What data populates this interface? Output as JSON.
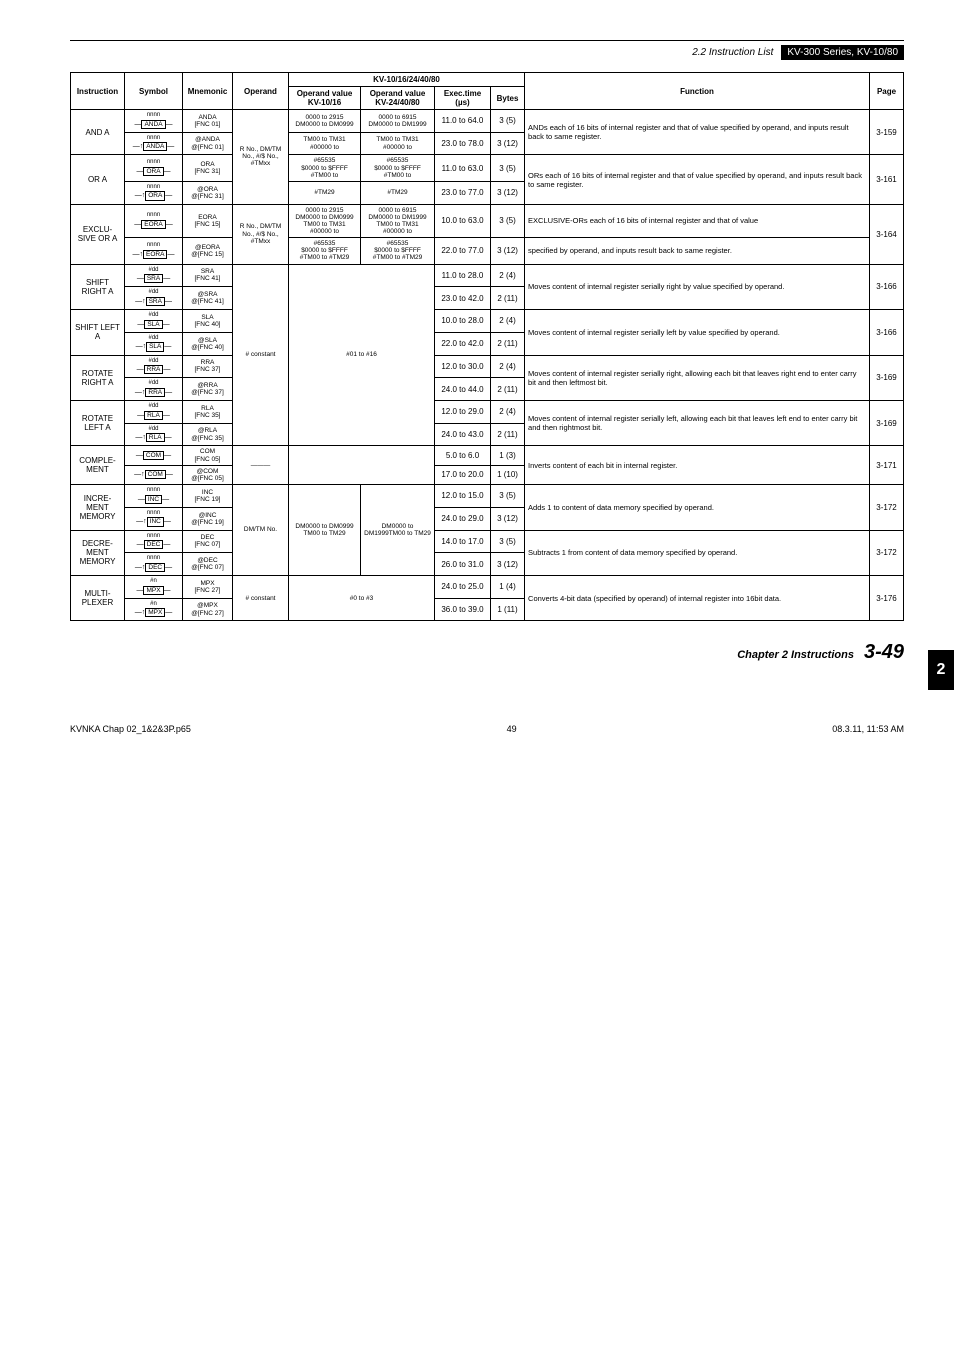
{
  "header": {
    "section_label": "2.2 Instruction List",
    "badge": "KV-300 Series, KV-10/80"
  },
  "side_tab": "2",
  "footer": {
    "chapter": "Chapter 2  Instructions",
    "page": "3-49"
  },
  "meta": {
    "filename": "KVNKA Chap 02_1&2&3P.p65",
    "pageno": "49",
    "timestamp": "08.3.11, 11:53 AM"
  },
  "table": {
    "head": {
      "instruction": "Instruction",
      "symbol": "Symbol",
      "mnemonic": "Mnemonic",
      "operand": "Operand",
      "kv_span": "KV-10/16/24/40/80",
      "ov1_a": "Operand value",
      "ov1_b": "KV-10/16",
      "ov2_a": "Operand value",
      "ov2_b": "KV-24/40/80",
      "exec_a": "Exec.time",
      "exec_b": "(µs)",
      "bytes": "Bytes",
      "function": "Function",
      "page": "Page"
    },
    "groups": [
      {
        "instruction": "AND A",
        "page": "3-159",
        "function": "ANDs each of 16 bits of internal register and that of value specified by operand, and inputs result back to same register.",
        "operand": "R No., DM/TM No., #/$ No., #TMxx",
        "operand_rowspan": 4,
        "rows": [
          {
            "sym_label": "nnnn",
            "sym_box": "ANDA",
            "sym_prefix": "—",
            "mnem": "ANDA\n[FNC 01]",
            "ov1": "0000 to 2915\nDM0000 to DM0999",
            "ov2": "0000 to 6915\nDM0000 to DM1999",
            "exec": "11.0 to 64.0",
            "bytes": "3 (5)"
          },
          {
            "sym_label": "nnnn",
            "sym_box": "ANDA",
            "sym_prefix": "—↑",
            "mnem": "@ANDA\n@[FNC 01]",
            "ov1": "TM00 to TM31\n#00000 to",
            "ov2": "TM00 to TM31\n#00000 to",
            "exec": "23.0 to 78.0",
            "bytes": "3 (12)"
          }
        ]
      },
      {
        "instruction": "OR A",
        "page": "3-161",
        "function": "ORs each of 16 bits of internal register and that of value specified by operand, and inputs result back to same register.",
        "rows": [
          {
            "sym_label": "nnnn",
            "sym_box": "ORA",
            "sym_prefix": "—",
            "mnem": "ORA\n[FNC 31]",
            "ov1": "#65535\n$0000 to $FFFF\n#TM00 to",
            "ov2": "#65535\n$0000 to $FFFF\n#TM00 to",
            "exec": "11.0 to 63.0",
            "bytes": "3 (5)"
          },
          {
            "sym_label": "nnnn",
            "sym_box": "ORA",
            "sym_prefix": "—↑",
            "mnem": "@ORA\n@[FNC 31]",
            "ov1": "#TM29",
            "ov2": "#TM29",
            "exec": "23.0 to 77.0",
            "bytes": "3 (12)"
          }
        ]
      },
      {
        "instruction": "EXCLU-SIVE OR A",
        "page": "3-164",
        "function_a": "EXCLUSIVE-ORs each of 16 bits of internal register and that of value",
        "function_b": "specified by operand, and inputs result back to same register.",
        "operand": "R No., DM/TM No., #/$ No., #TMxx",
        "rows": [
          {
            "sym_label": "nnnn",
            "sym_box": "EORA",
            "sym_prefix": "—",
            "mnem": "EORA\n[FNC 15]",
            "ov1": "0000 to 2915\nDM0000 to DM0999\nTM00 to TM31\n#00000 to",
            "ov2": "0000 to 6915\nDM0000 to DM1999\nTM00 to TM31\n#00000 to",
            "exec": "10.0 to 63.0",
            "bytes": "3 (5)"
          },
          {
            "sym_label": "nnnn",
            "sym_box": "EORA",
            "sym_prefix": "—↑",
            "mnem": "@EORA\n@[FNC 15]",
            "ov1": "#65535\n$0000 to $FFFF\n#TM00 to #TM29",
            "ov2": "#65535\n$0000 to $FFFF\n#TM00 to #TM29",
            "exec": "22.0 to 77.0",
            "bytes": "3 (12)"
          }
        ]
      },
      {
        "instruction": "SHIFT RIGHT A",
        "page": "3-166",
        "function": "Moves content of internal register serially right by value specified by operand.",
        "operand_span": "# constant",
        "ov_span": "#01 to #16",
        "rows": [
          {
            "sym_label": "#dd",
            "sym_box": "SRA",
            "sym_prefix": "—",
            "mnem": "SRA\n[FNC 41]",
            "exec": "11.0 to 28.0",
            "bytes": "2 (4)"
          },
          {
            "sym_label": "#dd",
            "sym_box": "SRA",
            "sym_prefix": "—↑",
            "mnem": "@SRA\n@[FNC 41]",
            "exec": "23.0 to 42.0",
            "bytes": "2 (11)"
          }
        ]
      },
      {
        "instruction": "SHIFT LEFT A",
        "page": "3-166",
        "function": "Moves content of internal register serially left by value specified by operand.",
        "rows": [
          {
            "sym_label": "#dd",
            "sym_box": "SLA",
            "sym_prefix": "—",
            "mnem": "SLA\n[FNC 40]",
            "exec": "10.0 to 28.0",
            "bytes": "2 (4)"
          },
          {
            "sym_label": "#dd",
            "sym_box": "SLA",
            "sym_prefix": "—↑",
            "mnem": "@SLA\n@[FNC 40]",
            "exec": "22.0 to 42.0",
            "bytes": "2 (11)"
          }
        ]
      },
      {
        "instruction": "ROTATE RIGHT A",
        "page": "3-169",
        "function": "Moves content of internal register serially right, allowing each bit that leaves right end to enter carry bit and then leftmost bit.",
        "rows": [
          {
            "sym_label": "#dd",
            "sym_box": "RRA",
            "sym_prefix": "—",
            "mnem": "RRA\n[FNC 37]",
            "exec": "12.0 to 30.0",
            "bytes": "2 (4)"
          },
          {
            "sym_label": "#dd",
            "sym_box": "RRA",
            "sym_prefix": "—↑",
            "mnem": "@RRA\n@[FNC 37]",
            "exec": "24.0 to 44.0",
            "bytes": "2 (11)"
          }
        ]
      },
      {
        "instruction": "ROTATE LEFT A",
        "page": "3-169",
        "function": "Moves content of internal register serially left, allowing each bit that leaves left end to enter carry bit and then rightmost bit.",
        "rows": [
          {
            "sym_label": "#dd",
            "sym_box": "RLA",
            "sym_prefix": "—",
            "mnem": "RLA\n[FNC 35]",
            "exec": "12.0 to 29.0",
            "bytes": "2 (4)"
          },
          {
            "sym_label": "#dd",
            "sym_box": "RLA",
            "sym_prefix": "—↑",
            "mnem": "@RLA\n@[FNC 35]",
            "exec": "24.0 to 43.0",
            "bytes": "2 (11)"
          }
        ]
      },
      {
        "instruction": "COMPLE-MENT",
        "page": "3-171",
        "function": "Inverts content of each bit in internal register.",
        "operand": "———",
        "ov_blank": true,
        "rows": [
          {
            "sym_label": "",
            "sym_box": "COM",
            "sym_prefix": "—",
            "mnem": "COM\n[FNC 05]",
            "exec": "5.0 to 6.0",
            "bytes": "1 (3)"
          },
          {
            "sym_label": "",
            "sym_box": "COM",
            "sym_prefix": "—↑",
            "mnem": "@COM\n@[FNC 05]",
            "exec": "17.0 to 20.0",
            "bytes": "1 (10)"
          }
        ]
      },
      {
        "instruction": "INCRE-MENT MEMORY",
        "page": "3-172",
        "function": "Adds 1 to content of data memory specified by operand.",
        "operand": "DM/TM No.",
        "ov1_span": "DM0000 to DM0999\nTM00 to TM29",
        "ov2_span": "DM0000 to DM1999TM00 to TM29",
        "rows": [
          {
            "sym_label": "nnnn",
            "sym_box": "INC",
            "sym_prefix": "—",
            "mnem": "INC\n[FNC 19]",
            "exec": "12.0 to 15.0",
            "bytes": "3 (5)"
          },
          {
            "sym_label": "nnnn",
            "sym_box": "INC",
            "sym_prefix": "—↑",
            "mnem": "@INC\n@[FNC 19]",
            "exec": "24.0 to 29.0",
            "bytes": "3 (12)"
          }
        ]
      },
      {
        "instruction": "DECRE-MENT MEMORY",
        "page": "3-172",
        "function": "Subtracts 1 from content of data memory specified by operand.",
        "rows": [
          {
            "sym_label": "nnnn",
            "sym_box": "DEC",
            "sym_prefix": "—",
            "mnem": "DEC\n[FNC 07]",
            "exec": "14.0 to 17.0",
            "bytes": "3 (5)"
          },
          {
            "sym_label": "nnnn",
            "sym_box": "DEC",
            "sym_prefix": "—↑",
            "mnem": "@DEC\n@[FNC 07]",
            "exec": "26.0 to 31.0",
            "bytes": "3 (12)"
          }
        ]
      },
      {
        "instruction": "MULTI-PLEXER",
        "page": "3-176",
        "function": "Converts 4-bit data (specified by operand) of internal register into 16bit data.",
        "operand": "# constant",
        "ov_span2": "#0 to #3",
        "rows": [
          {
            "sym_label": "#n",
            "sym_box": "MPX",
            "sym_prefix": "—",
            "mnem": "MPX\n[FNC 27]",
            "exec": "24.0 to 25.0",
            "bytes": "1 (4)"
          },
          {
            "sym_label": "#n",
            "sym_box": "MPX",
            "sym_prefix": "—↑",
            "mnem": "@MPX\n@[FNC 27]",
            "exec": "36.0 to 39.0",
            "bytes": "1 (11)"
          }
        ]
      }
    ]
  }
}
